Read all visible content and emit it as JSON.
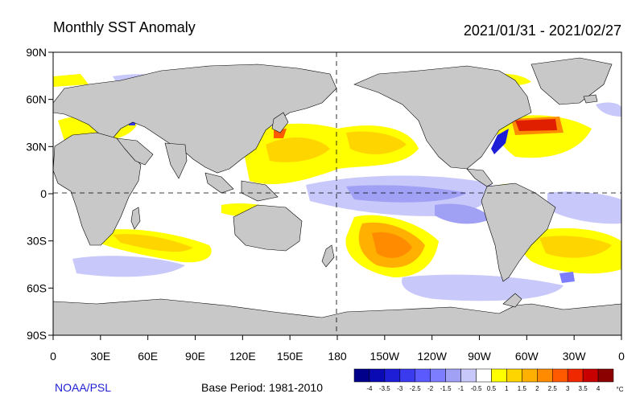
{
  "header": {
    "title": "Monthly SST Anomaly",
    "date_range": "2021/01/31 - 2021/02/27"
  },
  "axes": {
    "lat_labels": [
      "90N",
      "60N",
      "30N",
      "0",
      "30S",
      "60S",
      "90S"
    ],
    "lon_labels": [
      "0",
      "30E",
      "60E",
      "90E",
      "120E",
      "150E",
      "180",
      "150W",
      "120W",
      "90W",
      "60W",
      "30W",
      "0"
    ]
  },
  "footer": {
    "credit": "NOAA/PSL",
    "base_period": "Base Period: 1981-2010"
  },
  "colorbar": {
    "unit": "°C",
    "ticks": [
      "-4",
      "-3.5",
      "-3",
      "-2.5",
      "-2",
      "-1.5",
      "-1",
      "-0.5",
      "0.5",
      "1",
      "1.5",
      "2",
      "2.5",
      "3",
      "3.5",
      "4"
    ],
    "colors": [
      "#00008b",
      "#0a0ab4",
      "#1e1ed7",
      "#3a3aef",
      "#5a5aff",
      "#7d7dff",
      "#a0a0f5",
      "#c8c8fa",
      "#ffffff",
      "#ffff00",
      "#ffd500",
      "#ffb000",
      "#ff8c00",
      "#ff5a00",
      "#f02800",
      "#c80000",
      "#8b0000"
    ]
  },
  "colors": {
    "land": "#c8c8c8",
    "ocean": "#ffffff",
    "warm": "#ffff00",
    "cool": "#c8c8fa"
  }
}
